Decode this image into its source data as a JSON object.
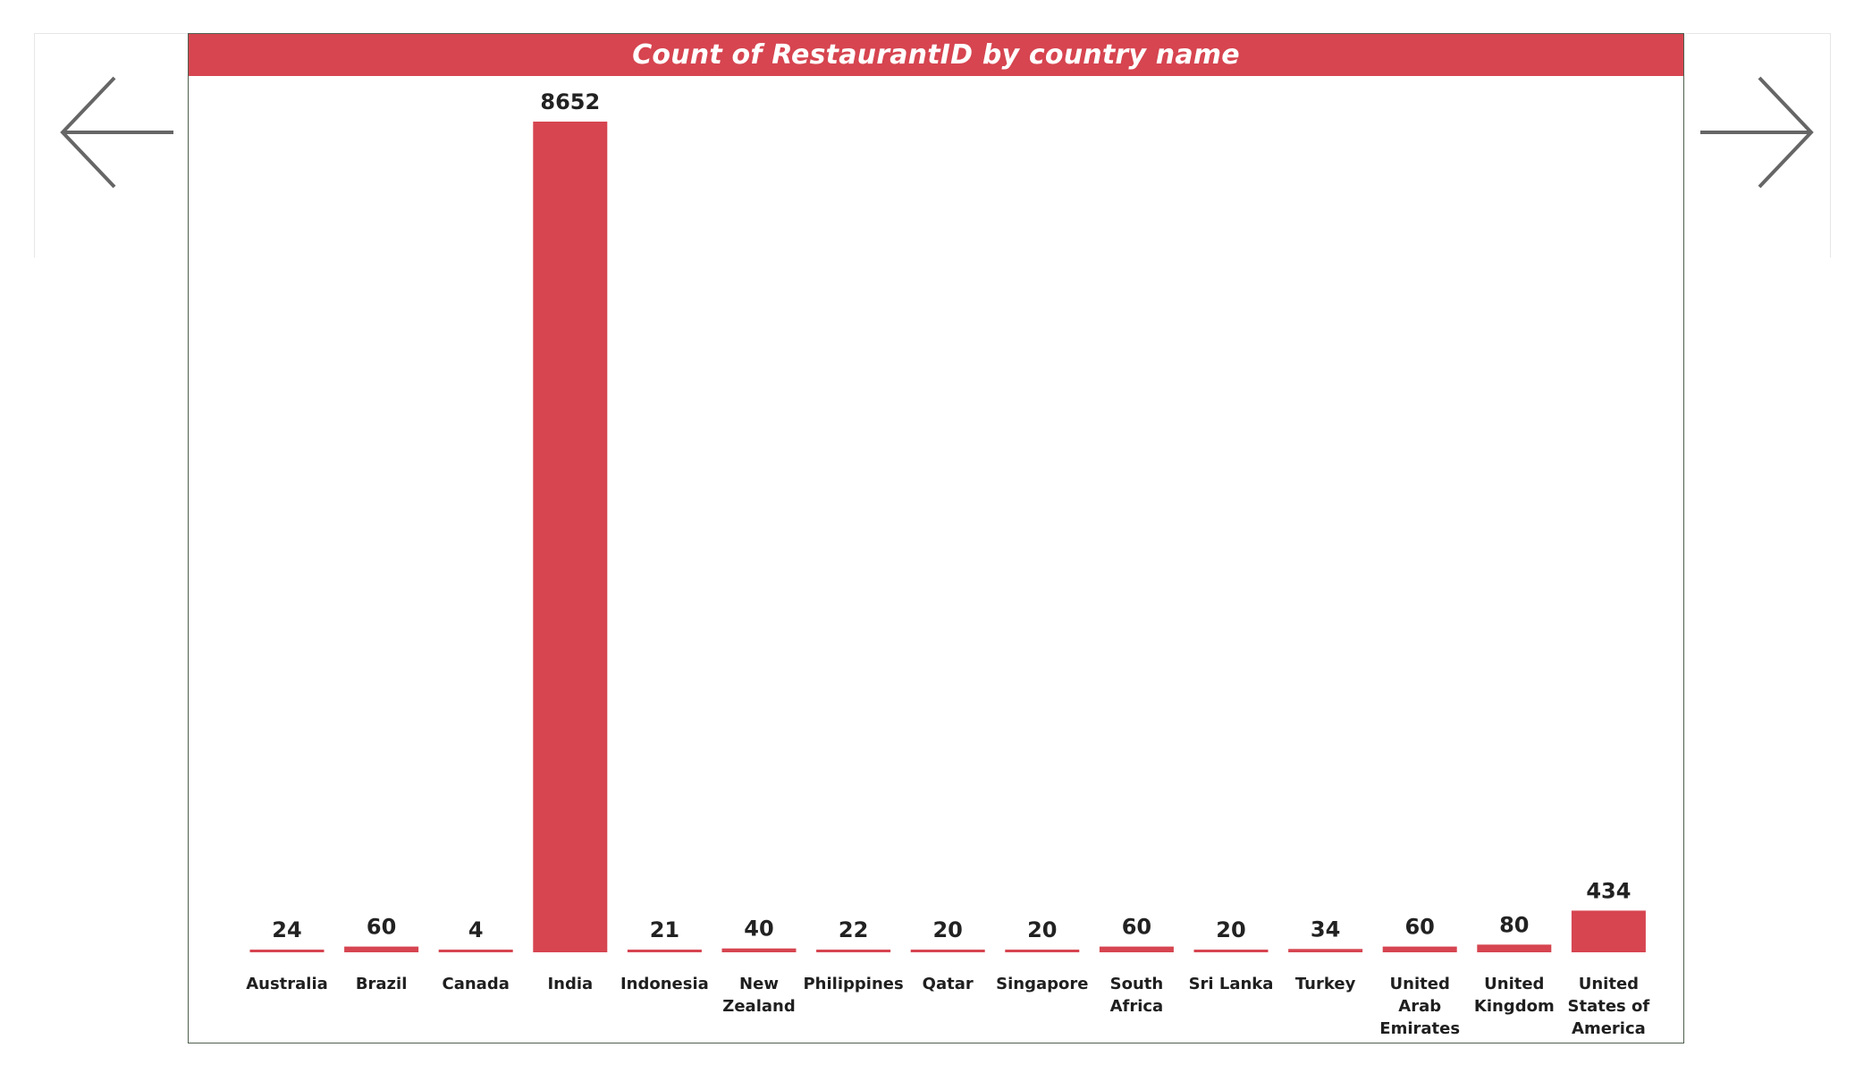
{
  "navigation": {
    "back_icon": "arrow-left-icon",
    "forward_icon": "arrow-right-icon",
    "arrow_color": "#666666"
  },
  "chart_data": {
    "type": "bar",
    "title": "Count of RestaurantID by country name",
    "xlabel": "",
    "ylabel": "",
    "categories": [
      [
        "Australia"
      ],
      [
        "Brazil"
      ],
      [
        "Canada"
      ],
      [
        "India"
      ],
      [
        "Indonesia"
      ],
      [
        "New",
        "Zealand"
      ],
      [
        "Philippines"
      ],
      [
        "Qatar"
      ],
      [
        "Singapore"
      ],
      [
        "South",
        "Africa"
      ],
      [
        "Sri Lanka"
      ],
      [
        "Turkey"
      ],
      [
        "United",
        "Arab",
        "Emirates"
      ],
      [
        "United",
        "Kingdom"
      ],
      [
        "United",
        "States of",
        "America"
      ]
    ],
    "values": [
      24,
      60,
      4,
      8652,
      21,
      40,
      22,
      20,
      20,
      60,
      20,
      34,
      60,
      80,
      434
    ],
    "ylim": [
      0,
      8652
    ],
    "grid": false,
    "bar_color": "#d64550",
    "title_bar_color": "#d64550"
  }
}
